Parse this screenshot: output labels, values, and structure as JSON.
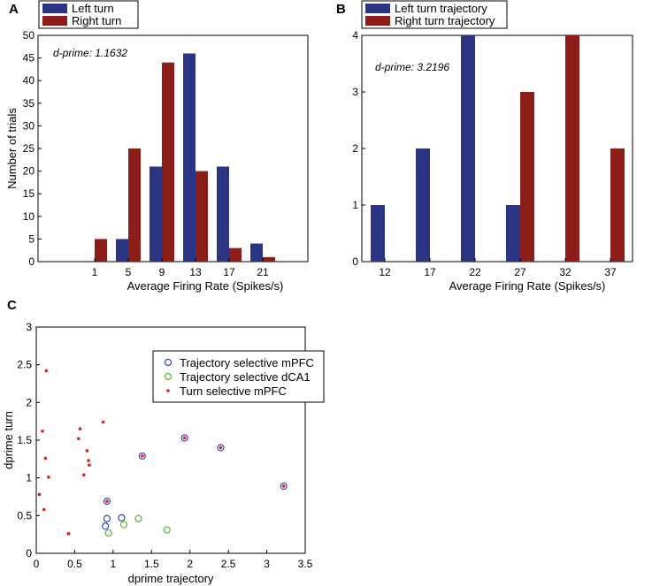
{
  "colors": {
    "navy": "#2b3584",
    "maroon": "#8c1d18",
    "blue_circle": "#2f4bb0",
    "green_circle": "#57b82d",
    "red_dot": "#e02020"
  },
  "chart_data": [
    {
      "id": "A",
      "type": "bar",
      "panel_letter": "A",
      "categories": [
        "1",
        "5",
        "9",
        "13",
        "17",
        "21"
      ],
      "series": [
        {
          "name": "Left turn",
          "values": [
            0,
            5,
            21,
            46,
            21,
            4
          ]
        },
        {
          "name": "Right turn",
          "values": [
            5,
            25,
            44,
            20,
            3,
            1
          ]
        }
      ],
      "xlabel": "Average Firing Rate (Spikes/s)",
      "ylabel": "Number of trials",
      "ylim": [
        0,
        50
      ],
      "yticks": [
        "0",
        "5",
        "10",
        "15",
        "20",
        "25",
        "30",
        "35",
        "40",
        "45",
        "50"
      ],
      "annotation": "d-prime: 1.1632",
      "legend_position": "top-left"
    },
    {
      "id": "B",
      "type": "bar",
      "panel_letter": "B",
      "categories": [
        "12",
        "17",
        "22",
        "27",
        "32",
        "37"
      ],
      "series": [
        {
          "name": "Left turn trajectory",
          "values": [
            1,
            2,
            4,
            1,
            0,
            0
          ]
        },
        {
          "name": "Right turn trajectory",
          "values": [
            0,
            0,
            0,
            3,
            4,
            2
          ]
        }
      ],
      "xlabel": "Average Firing Rate (Spikes/s)",
      "ylabel": "",
      "ylim": [
        0,
        4
      ],
      "yticks": [
        "0",
        "1",
        "2",
        "3",
        "4"
      ],
      "annotation": "d-prime: 3.2196",
      "legend_position": "top-left"
    },
    {
      "id": "C",
      "type": "scatter",
      "panel_letter": "C",
      "xlabel": "dprime trajectory",
      "ylabel": "dprime turn",
      "xlim": [
        0,
        3.5
      ],
      "ylim": [
        0,
        3
      ],
      "xticks": [
        "0",
        "0.5",
        "1",
        "1.5",
        "2",
        "2.5",
        "3",
        "3.5"
      ],
      "yticks": [
        "0",
        "0.5",
        "1",
        "1.5",
        "2",
        "2.5",
        "3"
      ],
      "legend_position": "top-center",
      "series": [
        {
          "name": "Trajectory selective mPFC",
          "marker": "blue-circle",
          "points": [
            [
              0.9,
              0.36
            ],
            [
              0.92,
              0.46
            ],
            [
              0.92,
              0.69
            ],
            [
              1.11,
              0.47
            ],
            [
              1.38,
              1.29
            ],
            [
              1.93,
              1.53
            ],
            [
              2.4,
              1.4
            ],
            [
              3.22,
              0.89
            ]
          ]
        },
        {
          "name": "Trajectory selective dCA1",
          "marker": "green-circle",
          "points": [
            [
              0.94,
              0.27
            ],
            [
              1.14,
              0.38
            ],
            [
              1.33,
              0.46
            ],
            [
              1.7,
              0.31
            ]
          ]
        },
        {
          "name": "Turn selective mPFC",
          "marker": "red-dot",
          "points": [
            [
              0.04,
              0.78
            ],
            [
              0.08,
              1.62
            ],
            [
              0.1,
              0.58
            ],
            [
              0.12,
              1.26
            ],
            [
              0.13,
              2.42
            ],
            [
              0.16,
              1.01
            ],
            [
              0.42,
              0.26
            ],
            [
              0.55,
              1.52
            ],
            [
              0.57,
              1.65
            ],
            [
              0.62,
              1.04
            ],
            [
              0.66,
              1.36
            ],
            [
              0.68,
              1.23
            ],
            [
              0.69,
              1.17
            ],
            [
              0.87,
              1.74
            ],
            [
              0.92,
              0.69
            ],
            [
              1.38,
              1.29
            ],
            [
              1.93,
              1.53
            ],
            [
              2.4,
              1.4
            ],
            [
              3.22,
              0.89
            ]
          ]
        }
      ]
    }
  ]
}
